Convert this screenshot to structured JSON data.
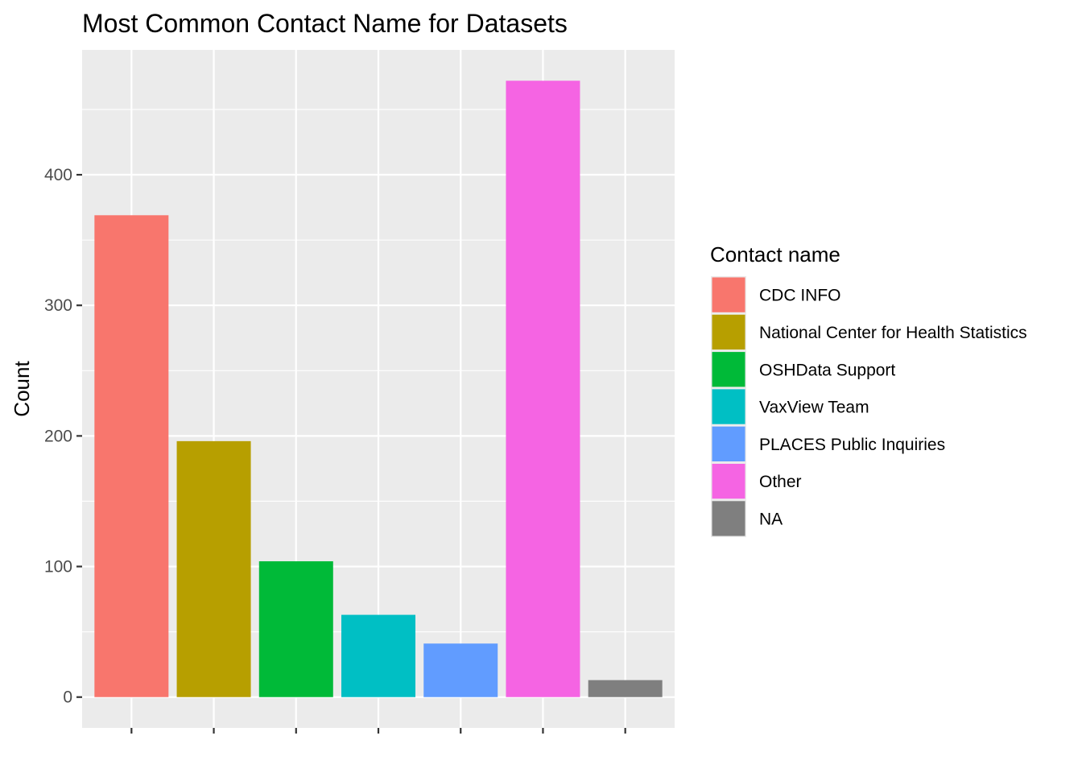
{
  "chart_data": {
    "type": "bar",
    "title": "Most Common Contact Name for Datasets",
    "xlabel": "",
    "ylabel": "Count",
    "ylim": [
      -23.6,
      495.6
    ],
    "y_ticks": [
      0,
      100,
      200,
      300,
      400
    ],
    "grid": true,
    "legend_title": "Contact name",
    "legend_position": "right",
    "categories": [
      "CDC INFO",
      "National Center for Health Statistics",
      "OSHData Support",
      "VaxView Team",
      "PLACES Public Inquiries",
      "Other",
      "NA"
    ],
    "values": [
      369,
      196,
      104,
      63,
      41,
      472,
      13
    ],
    "colors": [
      "#F8766D",
      "#B79F00",
      "#00BA38",
      "#00BFC4",
      "#619CFF",
      "#F564E3",
      "#7F7F7F"
    ]
  }
}
